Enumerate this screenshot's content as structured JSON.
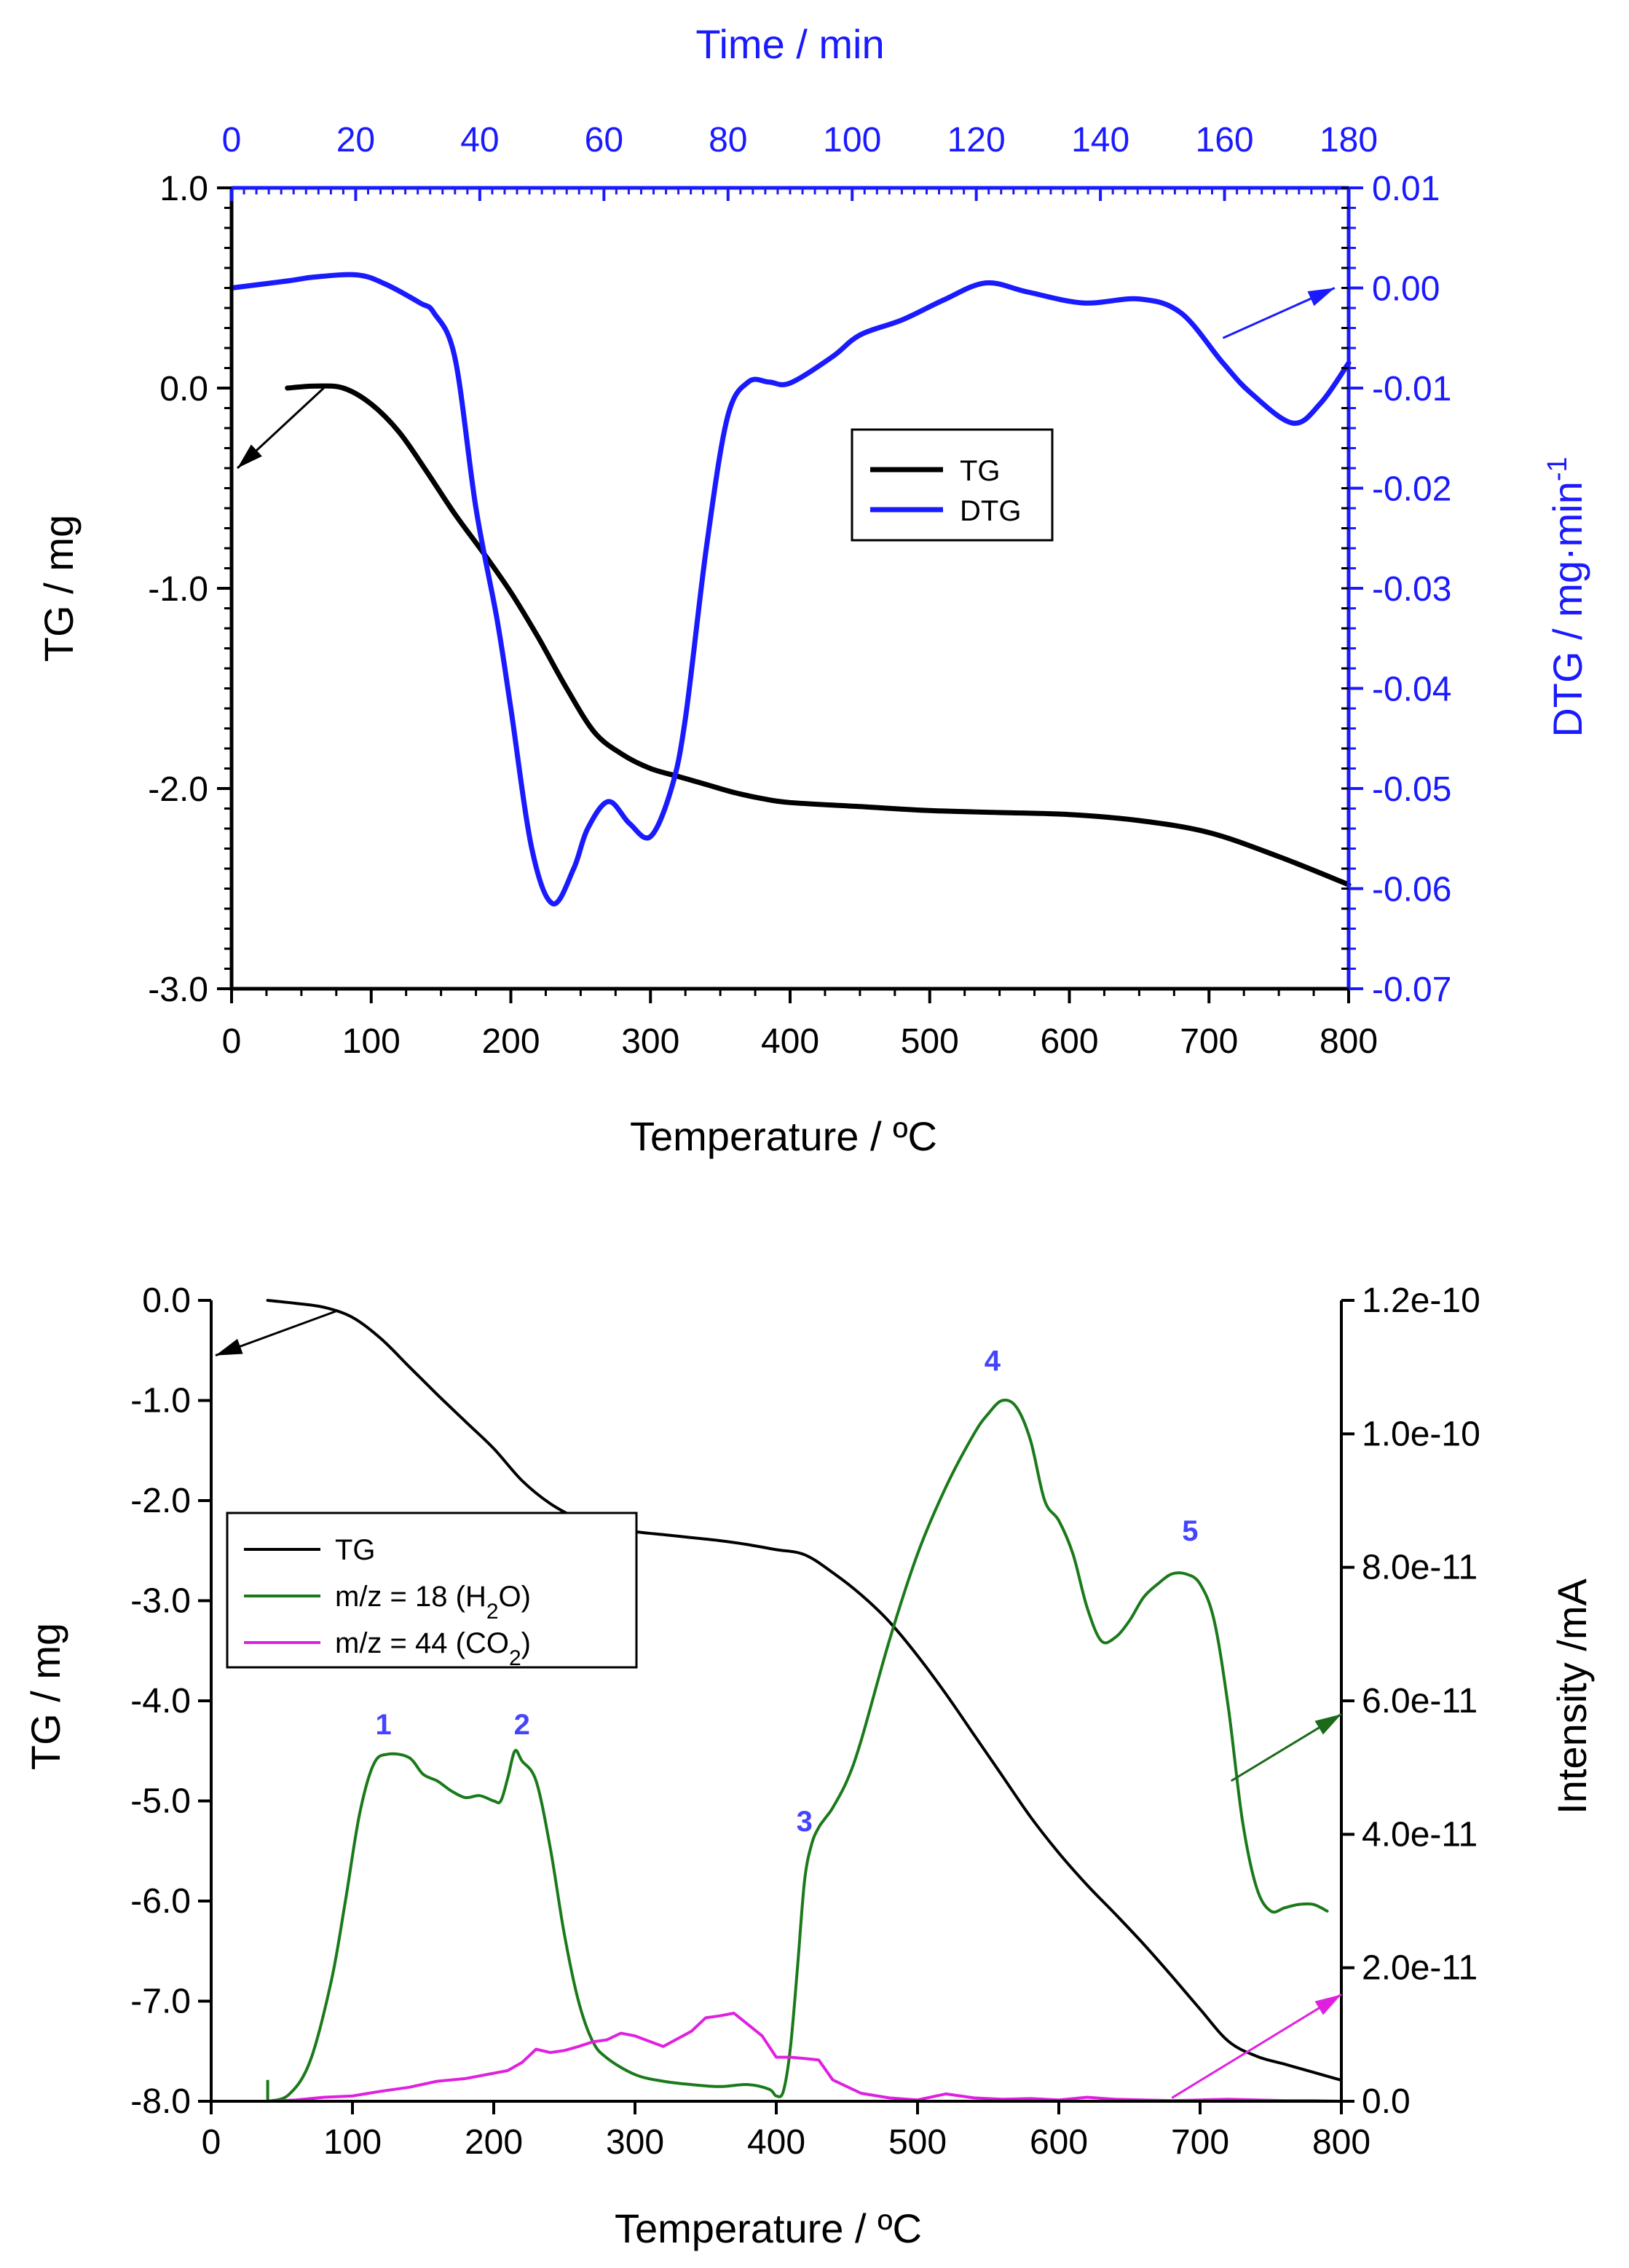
{
  "chart_data": [
    {
      "id": "top",
      "type": "line",
      "x_axis": {
        "label": "Temperature / ºC",
        "range": [
          0,
          800
        ],
        "ticks": [
          0,
          100,
          200,
          300,
          400,
          500,
          600,
          700,
          800
        ]
      },
      "top_axis": {
        "label": "Time / min",
        "range": [
          0,
          180
        ],
        "ticks": [
          0,
          20,
          40,
          60,
          80,
          100,
          120,
          140,
          160,
          180
        ],
        "color": "#1a1aff"
      },
      "y_left": {
        "label": "TG / mg",
        "range": [
          -3.0,
          1.0
        ],
        "ticks": [
          "-3.0",
          "-2.0",
          "-1.0",
          "0.0",
          "1.0"
        ]
      },
      "y_right": {
        "label_main": "DTG / mg·min",
        "label_sup": "-1",
        "range": [
          -0.07,
          0.01
        ],
        "ticks": [
          "-0.07",
          "-0.06",
          "-0.05",
          "-0.04",
          "-0.03",
          "-0.02",
          "-0.01",
          "0.00",
          "0.01"
        ],
        "color": "#1a1aff"
      },
      "legend": {
        "position": "center-right",
        "entries": [
          {
            "name": "TG",
            "color": "#000000"
          },
          {
            "name": "DTG",
            "color": "#1a1aff"
          }
        ]
      },
      "series": [
        {
          "name": "TG",
          "axis": "left",
          "color": "#000000",
          "x": [
            40,
            60,
            80,
            100,
            120,
            140,
            160,
            180,
            200,
            220,
            240,
            260,
            280,
            300,
            320,
            340,
            360,
            380,
            400,
            450,
            500,
            550,
            600,
            650,
            700,
            750,
            800
          ],
          "y": [
            0.0,
            0.01,
            0.0,
            -0.08,
            -0.22,
            -0.42,
            -0.63,
            -0.82,
            -1.02,
            -1.25,
            -1.5,
            -1.72,
            -1.83,
            -1.9,
            -1.94,
            -1.98,
            -2.02,
            -2.05,
            -2.07,
            -2.09,
            -2.11,
            -2.12,
            -2.13,
            -2.16,
            -2.22,
            -2.34,
            -2.48
          ]
        },
        {
          "name": "DTG",
          "axis": "right",
          "color": "#1a1aff",
          "x": [
            0,
            40,
            60,
            90,
            110,
            135,
            145,
            160,
            175,
            190,
            200,
            215,
            230,
            245,
            255,
            270,
            285,
            300,
            315,
            325,
            340,
            355,
            370,
            385,
            400,
            430,
            450,
            480,
            510,
            540,
            570,
            610,
            650,
            680,
            710,
            730,
            760,
            780,
            800
          ],
          "y": [
            0.0,
            0.0007,
            0.0011,
            0.0013,
            0.0004,
            -0.0015,
            -0.0025,
            -0.007,
            -0.022,
            -0.033,
            -0.042,
            -0.056,
            -0.0615,
            -0.058,
            -0.054,
            -0.0513,
            -0.0535,
            -0.0548,
            -0.05,
            -0.043,
            -0.026,
            -0.013,
            -0.0094,
            -0.0094,
            -0.0095,
            -0.0069,
            -0.0047,
            -0.0032,
            -0.0012,
            0.0005,
            -0.0004,
            -0.0015,
            -0.0011,
            -0.0025,
            -0.0075,
            -0.0105,
            -0.0135,
            -0.0115,
            -0.0075
          ]
        }
      ]
    },
    {
      "id": "bottom",
      "type": "line",
      "x_axis": {
        "label": "Temperature / ºC",
        "range": [
          0,
          800
        ],
        "ticks": [
          0,
          100,
          200,
          300,
          400,
          500,
          600,
          700,
          800
        ]
      },
      "y_left": {
        "label": "TG / mg",
        "range": [
          -8.0,
          0.0
        ],
        "ticks": [
          "-8.0",
          "-7.0",
          "-6.0",
          "-5.0",
          "-4.0",
          "-3.0",
          "-2.0",
          "-1.0",
          "0.0"
        ]
      },
      "y_right": {
        "label": "Intensity /mA",
        "range": [
          0,
          1.2e-10
        ],
        "ticks": [
          "0.0",
          "2.0e-11",
          "4.0e-11",
          "6.0e-11",
          "8.0e-11",
          "1.0e-10",
          "1.2e-10"
        ]
      },
      "legend": {
        "position": "middle-left",
        "entries": [
          {
            "name": "TG",
            "color": "#000000"
          },
          {
            "name_pre": "m/z = 18 (H",
            "sub": "2",
            "name_post": "O)",
            "color": "#1a7a1a"
          },
          {
            "name_pre": "m/z = 44 (CO",
            "sub": "2",
            "name_post": ")",
            "color": "#e020e0"
          }
        ]
      },
      "peak_labels": [
        {
          "text": "1",
          "x": 122,
          "y": 5.5e-11
        },
        {
          "text": "2",
          "x": 220,
          "y": 5.5e-11
        },
        {
          "text": "3",
          "x": 420,
          "y": 4.05e-11
        },
        {
          "text": "4",
          "x": 553,
          "y": 1.095e-10
        },
        {
          "text": "5",
          "x": 693,
          "y": 8.4e-11
        }
      ],
      "series": [
        {
          "name": "TG",
          "axis": "left",
          "color": "#000000",
          "x": [
            40,
            60,
            80,
            100,
            120,
            140,
            160,
            180,
            200,
            220,
            240,
            260,
            280,
            300,
            320,
            340,
            360,
            380,
            400,
            420,
            440,
            460,
            480,
            500,
            520,
            540,
            560,
            580,
            600,
            620,
            640,
            660,
            680,
            700,
            720,
            740,
            760,
            780,
            800
          ],
          "y": [
            0.0,
            -0.03,
            -0.07,
            -0.17,
            -0.38,
            -0.66,
            -0.94,
            -1.21,
            -1.48,
            -1.8,
            -2.03,
            -2.18,
            -2.26,
            -2.31,
            -2.34,
            -2.37,
            -2.4,
            -2.44,
            -2.49,
            -2.54,
            -2.72,
            -2.94,
            -3.21,
            -3.55,
            -3.93,
            -4.34,
            -4.75,
            -5.16,
            -5.52,
            -5.84,
            -6.13,
            -6.43,
            -6.75,
            -7.08,
            -7.4,
            -7.55,
            -7.63,
            -7.71,
            -7.79
          ]
        },
        {
          "name": "m/z = 18 (H2O)",
          "axis": "right",
          "color": "#1a7a1a",
          "x": [
            40,
            55,
            70,
            85,
            95,
            105,
            115,
            125,
            140,
            150,
            160,
            170,
            180,
            190,
            200,
            205,
            210,
            215,
            220,
            230,
            240,
            250,
            260,
            270,
            280,
            300,
            320,
            340,
            360,
            380,
            395,
            400,
            405,
            410,
            415,
            420,
            425,
            430,
            435,
            440,
            450,
            460,
            480,
            500,
            520,
            540,
            550,
            560,
            570,
            580,
            590,
            600,
            610,
            620,
            630,
            640,
            650,
            660,
            670,
            680,
            690,
            700,
            710,
            720,
            730,
            740,
            750,
            760,
            770,
            780,
            790
          ],
          "y": [
            0.0,
            1e-12,
            6e-12,
            1.8e-11,
            3e-11,
            4.3e-11,
            5.05e-11,
            5.2e-11,
            5.15e-11,
            4.9e-11,
            4.8e-11,
            4.65e-11,
            4.55e-11,
            4.58e-11,
            4.5e-11,
            4.5e-11,
            4.85e-11,
            5.25e-11,
            5.1e-11,
            4.8e-11,
            3.8e-11,
            2.5e-11,
            1.5e-11,
            9e-12,
            6.5e-12,
            4e-12,
            3e-12,
            2.5e-12,
            2.2e-12,
            2.5e-12,
            1.8e-12,
            8e-13,
            1.5e-12,
            8e-12,
            2e-11,
            3.3e-11,
            3.85e-11,
            4.1e-11,
            4.25e-11,
            4.4e-11,
            4.8e-11,
            5.4e-11,
            6.9e-11,
            8.2e-11,
            9.2e-11,
            1e-10,
            1.03e-10,
            1.05e-10,
            1.04e-10,
            9.9e-11,
            9e-11,
            8.7e-11,
            8.2e-11,
            7.4e-11,
            6.9e-11,
            6.95e-11,
            7.2e-11,
            7.55e-11,
            7.75e-11,
            7.9e-11,
            7.9e-11,
            7.75e-11,
            7.2e-11,
            5.9e-11,
            4.2e-11,
            3.2e-11,
            2.85e-11,
            2.9e-11,
            2.95e-11,
            2.95e-11,
            2.85e-11
          ]
        },
        {
          "name": "m/z = 44 (CO2)",
          "axis": "right",
          "color": "#e020e0",
          "x": [
            40,
            60,
            80,
            100,
            120,
            140,
            160,
            180,
            200,
            210,
            220,
            230,
            240,
            250,
            260,
            270,
            280,
            290,
            300,
            320,
            340,
            350,
            360,
            370,
            380,
            390,
            400,
            410,
            420,
            430,
            440,
            460,
            480,
            500,
            520,
            540,
            560,
            580,
            600,
            620,
            640,
            660,
            680,
            700,
            720,
            740,
            760,
            780,
            800
          ],
          "y": [
            0.0,
            2e-13,
            6e-13,
            8e-13,
            1.5e-12,
            2.1e-12,
            3e-12,
            3.4e-12,
            4.2e-12,
            4.6e-12,
            5.8e-12,
            7.8e-12,
            7.3e-12,
            7.6e-12,
            8.2e-12,
            8.9e-12,
            9.2e-12,
            1.02e-11,
            9.8e-12,
            8.2e-12,
            1.05e-11,
            1.25e-11,
            1.28e-11,
            1.32e-11,
            1.15e-11,
            9.8e-12,
            6.6e-12,
            6.6e-12,
            6.4e-12,
            6.2e-12,
            3.2e-12,
            1.2e-12,
            5e-13,
            2e-13,
            1.1e-12,
            5e-13,
            3e-13,
            4e-13,
            2e-13,
            6e-13,
            3e-13,
            2e-13,
            1e-13,
            2e-13,
            3e-13,
            2e-13,
            1e-13,
            1e-13,
            0.0
          ]
        }
      ]
    }
  ]
}
